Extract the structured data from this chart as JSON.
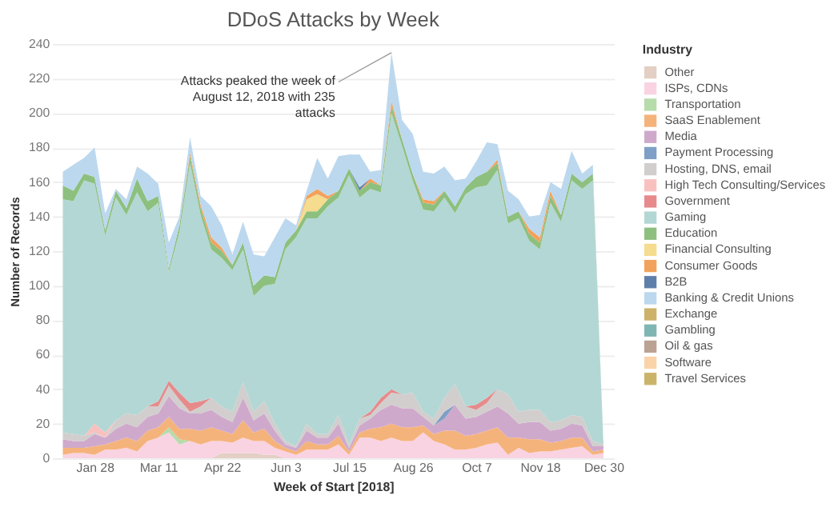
{
  "chart_data": {
    "type": "area",
    "stacked": true,
    "title": "DDoS Attacks by Week",
    "xlabel": "Week of Start [2018]",
    "ylabel": "Number of Records",
    "legend_title": "Industry",
    "legend": "right",
    "grid": "y",
    "x": [
      "2018-01-07",
      "2018-01-14",
      "2018-01-21",
      "2018-01-28",
      "2018-02-04",
      "2018-02-11",
      "2018-02-18",
      "2018-02-25",
      "2018-03-04",
      "2018-03-11",
      "2018-03-18",
      "2018-03-25",
      "2018-04-01",
      "2018-04-08",
      "2018-04-15",
      "2018-04-22",
      "2018-04-29",
      "2018-05-06",
      "2018-05-13",
      "2018-05-20",
      "2018-05-27",
      "2018-06-03",
      "2018-06-10",
      "2018-06-17",
      "2018-06-24",
      "2018-07-01",
      "2018-07-08",
      "2018-07-15",
      "2018-07-22",
      "2018-07-29",
      "2018-08-05",
      "2018-08-12",
      "2018-08-19",
      "2018-08-26",
      "2018-09-02",
      "2018-09-09",
      "2018-09-16",
      "2018-09-23",
      "2018-09-30",
      "2018-10-07",
      "2018-10-14",
      "2018-10-21",
      "2018-10-28",
      "2018-11-04",
      "2018-11-11",
      "2018-11-18",
      "2018-11-25",
      "2018-12-02",
      "2018-12-09",
      "2018-12-16",
      "2018-12-23",
      "2018-12-30"
    ],
    "xlim": [
      "2017-12-31",
      "2019-01-06"
    ],
    "xticks": [
      {
        "value": "2018-01-28",
        "label": "Jan 28"
      },
      {
        "value": "2018-03-11",
        "label": "Mar 11"
      },
      {
        "value": "2018-04-22",
        "label": "Apr 22"
      },
      {
        "value": "2018-06-03",
        "label": "Jun 3"
      },
      {
        "value": "2018-07-15",
        "label": "Jul 15"
      },
      {
        "value": "2018-08-26",
        "label": "Aug 26"
      },
      {
        "value": "2018-10-07",
        "label": "Oct 7"
      },
      {
        "value": "2018-11-18",
        "label": "Nov 18"
      },
      {
        "value": "2018-12-30",
        "label": "Dec 30"
      }
    ],
    "ylim": [
      0,
      240
    ],
    "yticks": [
      0,
      20,
      40,
      60,
      80,
      100,
      120,
      140,
      160,
      180,
      200,
      220,
      240
    ],
    "annotations": [
      {
        "text": "Attacks peaked the week of August 12, 2018 with 235 attacks",
        "x": "2018-08-12",
        "y": 235
      }
    ],
    "series": [
      {
        "name": "Other",
        "color": "#e3cfc4",
        "values": [
          0,
          0,
          0,
          0,
          0,
          0,
          0,
          0,
          0,
          0,
          0,
          0,
          0,
          0,
          0,
          3,
          3,
          3,
          3,
          2,
          2,
          0,
          0,
          0,
          0,
          0,
          0,
          0,
          0,
          0,
          0,
          0,
          0,
          0,
          0,
          0,
          0,
          0,
          0,
          0,
          0,
          0,
          0,
          0,
          0,
          0,
          0,
          0,
          0,
          0,
          0,
          0
        ]
      },
      {
        "name": "ISPs, CDNs",
        "color": "#f9d3e2",
        "values": [
          2,
          3,
          3,
          2,
          5,
          5,
          6,
          4,
          10,
          12,
          15,
          8,
          10,
          8,
          10,
          7,
          6,
          9,
          7,
          8,
          4,
          4,
          2,
          5,
          5,
          5,
          8,
          2,
          12,
          12,
          10,
          12,
          10,
          10,
          15,
          10,
          8,
          5,
          5,
          6,
          8,
          9,
          2,
          6,
          3,
          4,
          4,
          5,
          6,
          7,
          2,
          3
        ]
      },
      {
        "name": "Transportation",
        "color": "#b5dcaa",
        "values": [
          0,
          0,
          0,
          0,
          0,
          0,
          0,
          0,
          0,
          0,
          3,
          3,
          0,
          0,
          0,
          0,
          0,
          0,
          0,
          0,
          0,
          0,
          0,
          0,
          0,
          0,
          0,
          0,
          0,
          0,
          0,
          0,
          0,
          0,
          0,
          0,
          0,
          0,
          0,
          0,
          0,
          0,
          0,
          0,
          0,
          0,
          0,
          0,
          0,
          0,
          0,
          0
        ]
      },
      {
        "name": "SaaS Enablement",
        "color": "#f5b37c",
        "values": [
          4,
          3,
          3,
          5,
          3,
          5,
          6,
          6,
          6,
          6,
          6,
          6,
          7,
          8,
          8,
          6,
          5,
          10,
          5,
          7,
          4,
          2,
          2,
          5,
          3,
          3,
          5,
          2,
          3,
          5,
          8,
          8,
          8,
          8,
          4,
          4,
          8,
          11,
          8,
          8,
          8,
          9,
          10,
          6,
          8,
          7,
          5,
          5,
          6,
          5,
          2,
          2
        ]
      },
      {
        "name": "Media",
        "color": "#cfa9cc",
        "values": [
          5,
          4,
          4,
          7,
          4,
          7,
          8,
          8,
          8,
          8,
          12,
          12,
          9,
          10,
          10,
          8,
          7,
          13,
          7,
          9,
          6,
          2,
          2,
          6,
          4,
          4,
          7,
          2,
          4,
          6,
          10,
          11,
          11,
          11,
          5,
          5,
          7,
          15,
          10,
          10,
          11,
          12,
          14,
          8,
          10,
          10,
          7,
          7,
          8,
          7,
          3,
          2
        ]
      },
      {
        "name": "Payment Processing",
        "color": "#7f9fc6",
        "values": [
          0,
          0,
          0,
          0,
          0,
          0,
          0,
          0,
          0,
          0,
          0,
          0,
          0,
          0,
          0,
          0,
          0,
          0,
          0,
          0,
          0,
          0,
          0,
          0,
          0,
          0,
          0,
          0,
          0,
          0,
          0,
          0,
          0,
          0,
          0,
          0,
          4,
          0,
          0,
          0,
          0,
          0,
          0,
          0,
          0,
          0,
          0,
          0,
          0,
          0,
          0,
          0
        ]
      },
      {
        "name": "Hosting, DNS, email",
        "color": "#d2cece",
        "values": [
          4,
          4,
          3,
          1,
          0,
          5,
          6,
          7,
          6,
          4,
          6,
          5,
          1,
          4,
          7,
          6,
          6,
          9,
          5,
          7,
          4,
          2,
          1,
          4,
          2,
          2,
          5,
          2,
          4,
          2,
          4,
          7,
          8,
          9,
          3,
          4,
          8,
          12,
          7,
          4,
          5,
          10,
          11,
          7,
          7,
          7,
          5,
          5,
          5,
          5,
          3,
          1
        ]
      },
      {
        "name": "High Tech Consulting/Services",
        "color": "#f8c1c0",
        "values": [
          0,
          0,
          0,
          5,
          3,
          0,
          0,
          0,
          0,
          0,
          0,
          0,
          0,
          0,
          0,
          0,
          0,
          0,
          0,
          0,
          0,
          0,
          0,
          0,
          0,
          0,
          0,
          0,
          0,
          0,
          0,
          0,
          0,
          0,
          0,
          0,
          0,
          0,
          0,
          0,
          0,
          0,
          0,
          0,
          0,
          0,
          0,
          0,
          0,
          0,
          0,
          0
        ]
      },
      {
        "name": "Government",
        "color": "#e68a8b",
        "values": [
          0,
          0,
          0,
          0,
          0,
          0,
          0,
          0,
          0,
          3,
          3,
          4,
          5,
          3,
          0,
          0,
          0,
          0,
          0,
          0,
          0,
          0,
          0,
          0,
          0,
          0,
          0,
          0,
          0,
          2,
          3,
          2,
          0,
          0,
          0,
          0,
          0,
          0,
          0,
          3,
          3,
          0,
          0,
          0,
          0,
          0,
          0,
          0,
          0,
          0,
          0,
          0
        ]
      },
      {
        "name": "Gaming",
        "color": "#b3d7d4",
        "values": [
          135,
          135,
          148,
          139,
          114,
          129,
          115,
          129,
          113,
          115,
          63,
          93,
          139,
          108,
          86,
          86,
          82,
          77,
          67,
          67,
          81,
          111,
          121,
          119,
          125,
          132,
          126,
          156,
          128,
          129,
          119,
          160,
          144,
          123,
          117,
          120,
          116,
          99,
          123,
          126,
          123,
          127,
          99,
          112,
          98,
          93,
          127,
          115,
          136,
          132,
          151,
          0
        ]
      },
      {
        "name": "Education",
        "color": "#8dc07f",
        "values": [
          8,
          6,
          4,
          4,
          3,
          4,
          4,
          8,
          6,
          4,
          2,
          4,
          4,
          4,
          4,
          4,
          3,
          4,
          6,
          6,
          4,
          4,
          4,
          4,
          4,
          4,
          4,
          4,
          4,
          4,
          4,
          4,
          4,
          4,
          4,
          4,
          4,
          4,
          4,
          6,
          8,
          4,
          4,
          4,
          4,
          4,
          4,
          4,
          4,
          4,
          4,
          0
        ]
      },
      {
        "name": "Financial Consulting",
        "color": "#f5dc8e",
        "values": [
          null,
          null,
          null,
          null,
          null,
          null,
          null,
          null,
          null,
          null,
          null,
          null,
          null,
          null,
          null,
          null,
          null,
          null,
          null,
          null,
          null,
          null,
          0,
          7,
          10,
          0,
          null,
          null,
          null,
          null,
          null,
          null,
          null,
          null,
          null,
          null,
          null,
          null,
          null,
          null,
          null,
          null,
          null,
          null,
          null,
          null,
          null,
          null,
          null,
          null,
          null,
          null
        ]
      },
      {
        "name": "Consumer Goods",
        "color": "#f2a25c",
        "values": [
          null,
          null,
          null,
          null,
          null,
          null,
          null,
          null,
          null,
          null,
          null,
          0,
          2,
          2,
          3,
          2,
          0,
          null,
          null,
          null,
          null,
          null,
          0,
          2,
          3,
          2,
          0,
          null,
          0,
          2,
          0,
          3,
          0,
          0,
          2,
          2,
          0,
          null,
          null,
          null,
          0,
          2,
          0,
          0,
          3,
          3,
          3,
          0,
          null,
          null,
          null,
          null
        ]
      },
      {
        "name": "B2B",
        "color": "#5f7fab",
        "values": [
          null,
          null,
          null,
          null,
          null,
          null,
          null,
          null,
          null,
          null,
          null,
          null,
          null,
          null,
          null,
          null,
          null,
          null,
          null,
          null,
          null,
          null,
          null,
          null,
          null,
          null,
          null,
          0,
          2,
          0,
          null,
          null,
          null,
          null,
          null,
          null,
          null,
          null,
          null,
          null,
          null,
          null,
          null,
          null,
          null,
          null,
          null,
          null,
          null,
          null,
          null,
          null
        ]
      },
      {
        "name": "Banking & Credit Unions",
        "color": "#bcd8ee",
        "values": [
          8,
          15,
          9,
          17,
          10,
          1,
          5,
          7,
          16,
          7,
          15,
          5,
          9,
          5,
          18,
          13,
          6,
          12,
          18,
          11,
          23,
          14,
          3,
          3,
          18,
          10,
          20,
          8,
          19,
          4,
          9,
          28,
          11,
          23,
          16,
          16,
          14,
          15,
          5,
          9,
          17,
          9,
          15,
          7,
          7,
          13,
          5,
          15,
          13,
          5,
          5,
          0
        ]
      },
      {
        "name": "Exchange",
        "color": "#cdb26a",
        "values": [
          null,
          null,
          null,
          null,
          null,
          null,
          null,
          null,
          null,
          null,
          null,
          null,
          null,
          null,
          null,
          null,
          null,
          null,
          null,
          null,
          null,
          null,
          null,
          null,
          null,
          null,
          null,
          null,
          null,
          null,
          null,
          null,
          null,
          null,
          null,
          null,
          null,
          null,
          null,
          null,
          null,
          null,
          null,
          null,
          null,
          null,
          null,
          null,
          null,
          null,
          null,
          null
        ]
      },
      {
        "name": "Gambling",
        "color": "#7fb6b3",
        "values": [
          null,
          null,
          null,
          null,
          null,
          null,
          null,
          null,
          null,
          null,
          null,
          null,
          null,
          null,
          null,
          null,
          null,
          null,
          null,
          null,
          null,
          null,
          null,
          null,
          null,
          null,
          null,
          null,
          null,
          null,
          null,
          null,
          null,
          null,
          null,
          null,
          null,
          null,
          null,
          null,
          null,
          null,
          null,
          null,
          null,
          null,
          null,
          null,
          null,
          null,
          null,
          null
        ]
      },
      {
        "name": "Oil & gas",
        "color": "#bba293",
        "values": [
          null,
          null,
          null,
          null,
          null,
          null,
          null,
          null,
          null,
          null,
          null,
          null,
          null,
          null,
          null,
          null,
          null,
          null,
          null,
          null,
          null,
          null,
          null,
          null,
          null,
          null,
          null,
          null,
          null,
          null,
          null,
          null,
          null,
          null,
          null,
          null,
          null,
          null,
          null,
          null,
          null,
          null,
          null,
          null,
          null,
          null,
          null,
          null,
          null,
          null,
          null,
          null
        ]
      },
      {
        "name": "Software",
        "color": "#fbd3a9",
        "values": [
          null,
          null,
          null,
          null,
          null,
          null,
          null,
          null,
          null,
          null,
          null,
          null,
          null,
          null,
          null,
          null,
          null,
          null,
          null,
          null,
          null,
          null,
          null,
          null,
          null,
          null,
          null,
          null,
          null,
          null,
          null,
          null,
          null,
          null,
          null,
          null,
          null,
          null,
          null,
          null,
          null,
          null,
          null,
          null,
          null,
          null,
          null,
          null,
          null,
          null,
          null,
          null
        ]
      },
      {
        "name": "Travel Services",
        "color": "#cbb46a",
        "values": [
          null,
          null,
          null,
          null,
          null,
          null,
          null,
          null,
          null,
          null,
          null,
          null,
          null,
          null,
          null,
          null,
          null,
          null,
          null,
          null,
          null,
          null,
          null,
          null,
          null,
          null,
          null,
          null,
          null,
          null,
          null,
          null,
          null,
          null,
          null,
          null,
          null,
          null,
          null,
          null,
          null,
          null,
          null,
          null,
          null,
          null,
          null,
          null,
          null,
          null,
          null,
          null
        ]
      }
    ]
  }
}
